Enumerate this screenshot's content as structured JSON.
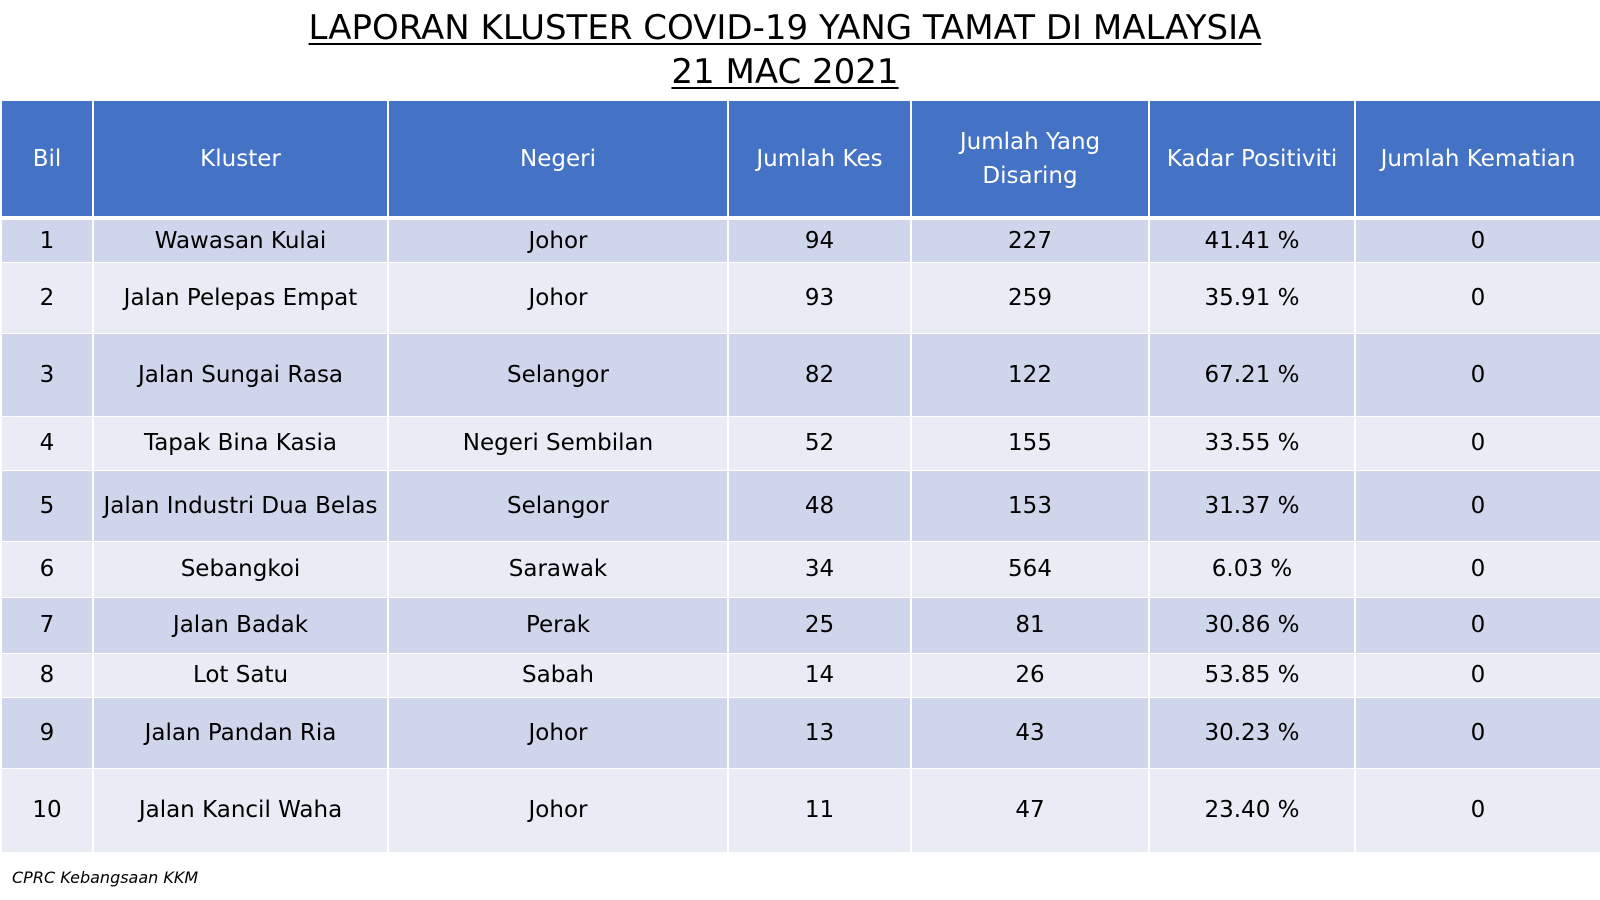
{
  "title": {
    "line1": "LAPORAN KLUSTER COVID-19 YANG TAMAT DI MALAYSIA",
    "line2": "21 MAC 2021"
  },
  "table": {
    "headers": [
      "Bil",
      "Kluster",
      "Negeri",
      "Jumlah Kes",
      "Jumlah Yang Disaring",
      "Kadar Positiviti",
      "Jumlah Kematian"
    ],
    "rows": [
      [
        "1",
        "Wawasan Kulai",
        "Johor",
        "94",
        "227",
        "41.41 %",
        "0"
      ],
      [
        "2",
        "Jalan Pelepas Empat",
        "Johor",
        "93",
        "259",
        "35.91 %",
        "0"
      ],
      [
        "3",
        "Jalan Sungai Rasa",
        "Selangor",
        "82",
        "122",
        "67.21 %",
        "0"
      ],
      [
        "4",
        "Tapak Bina Kasia",
        "Negeri Sembilan",
        "52",
        "155",
        "33.55 %",
        "0"
      ],
      [
        "5",
        "Jalan Industri Dua Belas",
        "Selangor",
        "48",
        "153",
        "31.37 %",
        "0"
      ],
      [
        "6",
        "Sebangkoi",
        "Sarawak",
        "34",
        "564",
        "6.03 %",
        "0"
      ],
      [
        "7",
        "Jalan Badak",
        "Perak",
        "25",
        "81",
        "30.86 %",
        "0"
      ],
      [
        "8",
        "Lot Satu",
        "Sabah",
        "14",
        "26",
        "53.85 %",
        "0"
      ],
      [
        "9",
        "Jalan Pandan Ria",
        "Johor",
        "13",
        "43",
        "30.23 %",
        "0"
      ],
      [
        "10",
        "Jalan Kancil Waha",
        "Johor",
        "11",
        "47",
        "23.40 %",
        "0"
      ]
    ]
  },
  "source": "CPRC Kebangsaan KKM",
  "colors": {
    "header_bg": "#4472c4",
    "row_dark": "#cfd5ea",
    "row_light": "#e9ebf5"
  }
}
